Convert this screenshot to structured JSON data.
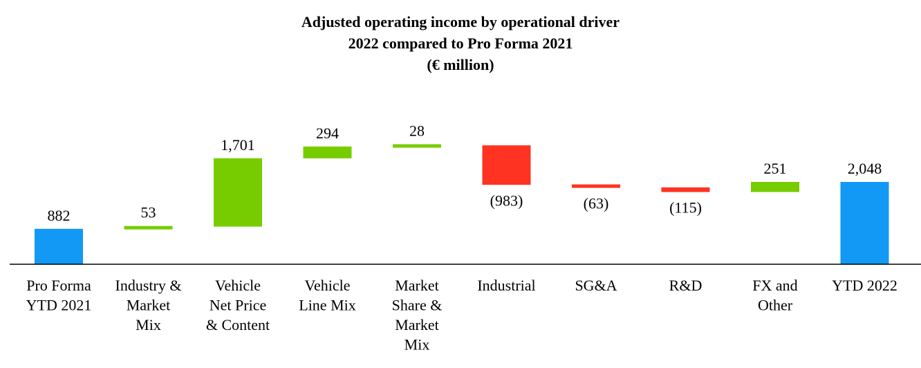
{
  "chart_data": {
    "type": "waterfall",
    "title_lines": [
      "Adjusted operating income by operational driver",
      "2022 compared to Pro Forma 2021",
      "(€ million)"
    ],
    "xlabel": "",
    "ylabel": "",
    "grid": false,
    "legend": "none",
    "colors": {
      "total": "#1199F5",
      "increase": "#77CC00",
      "decrease": "#FF3322",
      "axis": "#000000"
    },
    "categories": [
      "Pro Forma YTD 2021",
      "Industry & Market Mix",
      "Vehicle Net Price & Content",
      "Vehicle Line Mix",
      "Market Share & Market Mix",
      "Industrial",
      "SG&A",
      "R&D",
      "FX and Other",
      "YTD 2022"
    ],
    "category_lines": [
      [
        "Pro Forma",
        "YTD 2021"
      ],
      [
        "Industry &",
        "Market",
        "Mix"
      ],
      [
        "Vehicle",
        "Net Price",
        "& Content"
      ],
      [
        "Vehicle",
        "Line Mix"
      ],
      [
        "Market",
        "Share &",
        "Market",
        "Mix"
      ],
      [
        "Industrial"
      ],
      [
        "SG&A"
      ],
      [
        "R&D"
      ],
      [
        "FX and",
        "Other"
      ],
      [
        "YTD 2022"
      ]
    ],
    "values": [
      882,
      53,
      1701,
      294,
      28,
      -983,
      -63,
      -115,
      251,
      2048
    ],
    "kinds": [
      "total",
      "increase",
      "increase",
      "increase",
      "increase",
      "decrease",
      "decrease",
      "decrease",
      "increase",
      "total"
    ],
    "labels": [
      "882",
      "53",
      "1,701",
      "294",
      "28",
      "(983)",
      "(63)",
      "(115)",
      "251",
      "2,048"
    ]
  }
}
